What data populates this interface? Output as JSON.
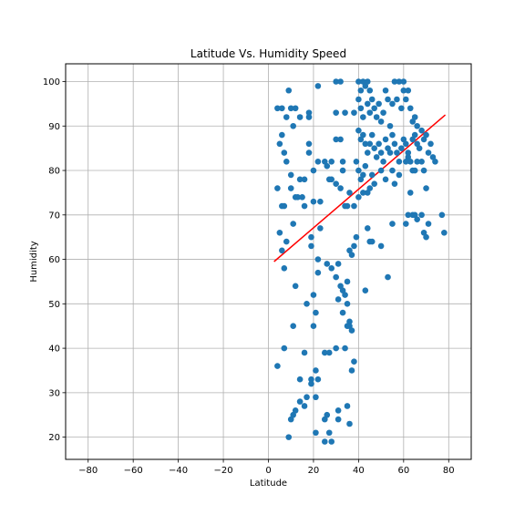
{
  "chart_data": {
    "type": "scatter",
    "title": "Latitude Vs. Humidity Speed",
    "xlabel": "Latitude",
    "ylabel": "Humidity",
    "xlim": [
      -90,
      90
    ],
    "ylim": [
      15,
      104
    ],
    "x_ticks": [
      -80,
      -60,
      -40,
      -20,
      0,
      20,
      40,
      60,
      80
    ],
    "y_ticks": [
      20,
      30,
      40,
      50,
      60,
      70,
      80,
      90,
      100
    ],
    "grid": true,
    "colors": {
      "points": "#1f77b4",
      "regression": "#ff0000",
      "grid": "#b0b0b0"
    },
    "regression_line": {
      "x": [
        2.5,
        78.5
      ],
      "y": [
        59.5,
        92.5
      ]
    },
    "points": [
      [
        4,
        94
      ],
      [
        6,
        94
      ],
      [
        8,
        92
      ],
      [
        10,
        94
      ],
      [
        12,
        94
      ],
      [
        9,
        98
      ],
      [
        11,
        90
      ],
      [
        14,
        92
      ],
      [
        18,
        93
      ],
      [
        18,
        92
      ],
      [
        22,
        99
      ],
      [
        30,
        93
      ],
      [
        34,
        93
      ],
      [
        30,
        100
      ],
      [
        32,
        100
      ],
      [
        5,
        86
      ],
      [
        6,
        88
      ],
      [
        7,
        84
      ],
      [
        8,
        82
      ],
      [
        10,
        79
      ],
      [
        14,
        78
      ],
      [
        16,
        78
      ],
      [
        18,
        86
      ],
      [
        18,
        84
      ],
      [
        20,
        80
      ],
      [
        22,
        82
      ],
      [
        25,
        82
      ],
      [
        26,
        81
      ],
      [
        28,
        82
      ],
      [
        28,
        78
      ],
      [
        30,
        87
      ],
      [
        32,
        87
      ],
      [
        33,
        82
      ],
      [
        33,
        80
      ],
      [
        4,
        76
      ],
      [
        6,
        72
      ],
      [
        7,
        72
      ],
      [
        10,
        76
      ],
      [
        12,
        74
      ],
      [
        13,
        74
      ],
      [
        15,
        74
      ],
      [
        16,
        72
      ],
      [
        20,
        73
      ],
      [
        23,
        73
      ],
      [
        27,
        78
      ],
      [
        30,
        77
      ],
      [
        32,
        76
      ],
      [
        34,
        72
      ],
      [
        35,
        72
      ],
      [
        36,
        75
      ],
      [
        5,
        66
      ],
      [
        6,
        62
      ],
      [
        8,
        64
      ],
      [
        11,
        68
      ],
      [
        19,
        65
      ],
      [
        19,
        63
      ],
      [
        23,
        67
      ],
      [
        36,
        62
      ],
      [
        37,
        61
      ],
      [
        38,
        63
      ],
      [
        39,
        65
      ],
      [
        7,
        58
      ],
      [
        12,
        54
      ],
      [
        17,
        50
      ],
      [
        20,
        45
      ],
      [
        20,
        52
      ],
      [
        21,
        48
      ],
      [
        22,
        57
      ],
      [
        22,
        60
      ],
      [
        26,
        59
      ],
      [
        28,
        58
      ],
      [
        31,
        59
      ],
      [
        30,
        56
      ],
      [
        31,
        51
      ],
      [
        32,
        54
      ],
      [
        33,
        53
      ],
      [
        33,
        48
      ],
      [
        34,
        52
      ],
      [
        35,
        55
      ],
      [
        35,
        50
      ],
      [
        36,
        46
      ],
      [
        36,
        45
      ],
      [
        4,
        36
      ],
      [
        7,
        40
      ],
      [
        11,
        45
      ],
      [
        14,
        33
      ],
      [
        16,
        39
      ],
      [
        19,
        33
      ],
      [
        19,
        32
      ],
      [
        21,
        35
      ],
      [
        22,
        33
      ],
      [
        25,
        39
      ],
      [
        27,
        39
      ],
      [
        30,
        40
      ],
      [
        34,
        40
      ],
      [
        35,
        45
      ],
      [
        37,
        44
      ],
      [
        38,
        37
      ],
      [
        37,
        35
      ],
      [
        9,
        20
      ],
      [
        10,
        24
      ],
      [
        11,
        25
      ],
      [
        12,
        26
      ],
      [
        14,
        28
      ],
      [
        16,
        27
      ],
      [
        17,
        29
      ],
      [
        21,
        29
      ],
      [
        21,
        21
      ],
      [
        25,
        19
      ],
      [
        25,
        24
      ],
      [
        26,
        25
      ],
      [
        27,
        21
      ],
      [
        28,
        19
      ],
      [
        31,
        24
      ],
      [
        31,
        26
      ],
      [
        35,
        27
      ],
      [
        36,
        23
      ],
      [
        38,
        93
      ],
      [
        40,
        100
      ],
      [
        41,
        98
      ],
      [
        42,
        100
      ],
      [
        43,
        99
      ],
      [
        44,
        100
      ],
      [
        45,
        98
      ],
      [
        40,
        96
      ],
      [
        41,
        94
      ],
      [
        42,
        92
      ],
      [
        44,
        95
      ],
      [
        45,
        93
      ],
      [
        46,
        96
      ],
      [
        47,
        94
      ],
      [
        48,
        92
      ],
      [
        49,
        95
      ],
      [
        50,
        91
      ],
      [
        51,
        93
      ],
      [
        52,
        98
      ],
      [
        53,
        96
      ],
      [
        54,
        90
      ],
      [
        55,
        95
      ],
      [
        56,
        100
      ],
      [
        57,
        96
      ],
      [
        58,
        100
      ],
      [
        59,
        94
      ],
      [
        60,
        98
      ],
      [
        60,
        100
      ],
      [
        61,
        96
      ],
      [
        62,
        98
      ],
      [
        63,
        94
      ],
      [
        64,
        91
      ],
      [
        65,
        92
      ],
      [
        66,
        90
      ],
      [
        40,
        89
      ],
      [
        41,
        87
      ],
      [
        42,
        88
      ],
      [
        43,
        86
      ],
      [
        44,
        84
      ],
      [
        45,
        86
      ],
      [
        46,
        88
      ],
      [
        47,
        85
      ],
      [
        48,
        83
      ],
      [
        49,
        86
      ],
      [
        50,
        84
      ],
      [
        51,
        82
      ],
      [
        52,
        87
      ],
      [
        53,
        85
      ],
      [
        54,
        84
      ],
      [
        55,
        88
      ],
      [
        56,
        86
      ],
      [
        57,
        84
      ],
      [
        58,
        82
      ],
      [
        59,
        85
      ],
      [
        60,
        87
      ],
      [
        61,
        86
      ],
      [
        62,
        84
      ],
      [
        63,
        82
      ],
      [
        64,
        87
      ],
      [
        65,
        88
      ],
      [
        66,
        86
      ],
      [
        67,
        85
      ],
      [
        68,
        89
      ],
      [
        69,
        87
      ],
      [
        70,
        88
      ],
      [
        71,
        84
      ],
      [
        72,
        86
      ],
      [
        73,
        83
      ],
      [
        74,
        82
      ],
      [
        39,
        82
      ],
      [
        40,
        80
      ],
      [
        41,
        78
      ],
      [
        42,
        79
      ],
      [
        43,
        81
      ],
      [
        44,
        75
      ],
      [
        45,
        76
      ],
      [
        46,
        79
      ],
      [
        47,
        77
      ],
      [
        50,
        80
      ],
      [
        52,
        78
      ],
      [
        55,
        80
      ],
      [
        56,
        77
      ],
      [
        58,
        79
      ],
      [
        61,
        82
      ],
      [
        62,
        83
      ],
      [
        64,
        80
      ],
      [
        65,
        80
      ],
      [
        66,
        82
      ],
      [
        68,
        82
      ],
      [
        69,
        80
      ],
      [
        70,
        76
      ],
      [
        38,
        72
      ],
      [
        40,
        74
      ],
      [
        42,
        75
      ],
      [
        44,
        67
      ],
      [
        45,
        64
      ],
      [
        46,
        64
      ],
      [
        50,
        63
      ],
      [
        53,
        56
      ],
      [
        55,
        68
      ],
      [
        61,
        68
      ],
      [
        62,
        70
      ],
      [
        63,
        75
      ],
      [
        64,
        70
      ],
      [
        65,
        70
      ],
      [
        66,
        69
      ],
      [
        68,
        70
      ],
      [
        69,
        66
      ],
      [
        70,
        65
      ],
      [
        71,
        68
      ],
      [
        77,
        70
      ],
      [
        78,
        66
      ],
      [
        43,
        53
      ]
    ]
  }
}
